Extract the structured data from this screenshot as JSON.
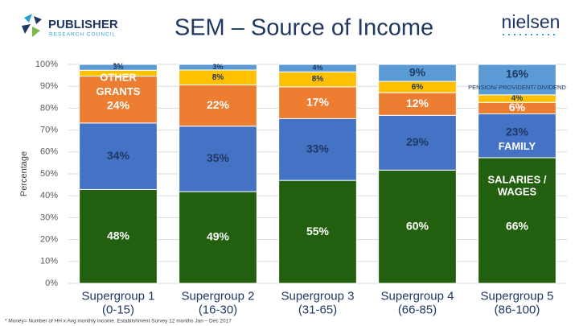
{
  "header": {
    "logo_left": "PUBLISHER",
    "logo_left_sub": "RESEARCH COUNCIL",
    "logo_right": "nielsen"
  },
  "chart_data": {
    "type": "bar",
    "stacked": "percent",
    "title": "SEM – Source of Income",
    "y_label": "Percentage",
    "footnote": "* Money= Number of HH x Avg monthly income. Establishment Survey 12 months Jan – Dec 2017",
    "categories": [
      "Supergroup 1\n(0-15)",
      "Supergroup 2\n(16-30)",
      "Supergroup 3\n(31-65)",
      "Supergroup 4\n(66-85)",
      "Supergroup 5\n(86-100)"
    ],
    "series": [
      {
        "name": "SALARIES /\nWAGES",
        "color": "#22600f",
        "values": [
          48,
          49,
          55,
          60,
          66
        ],
        "value_labels": [
          "48%",
          "49%",
          "55%",
          "60%",
          "66%"
        ]
      },
      {
        "name": "FAMILY",
        "color": "#4472c4",
        "values": [
          34,
          35,
          33,
          29,
          23
        ],
        "value_labels": [
          "34%",
          "35%",
          "33%",
          "29%",
          "23%"
        ]
      },
      {
        "name": "GRANTS",
        "color": "#ed7d31",
        "values": [
          24,
          22,
          17,
          12,
          6
        ],
        "value_labels": [
          "24%",
          "22%",
          "17%",
          "12%",
          "6%"
        ]
      },
      {
        "name": "OTHER",
        "color": "#ffc000",
        "values": [
          3,
          8,
          8,
          6,
          4
        ],
        "value_labels": [
          "3%",
          "8%",
          "8%",
          "6%",
          "4%"
        ]
      },
      {
        "name": "PENSION/ PROVIDENT/ DIVIDEND",
        "color": "#5b9bd5",
        "values": [
          3,
          3,
          4,
          9,
          16
        ],
        "value_labels": [
          "3%",
          "3%",
          "4%",
          "9%",
          "16%"
        ]
      }
    ],
    "ylim": [
      0,
      100
    ],
    "yticks": [
      {
        "value": 0,
        "label": "0%"
      },
      {
        "value": 10,
        "label": "10%"
      },
      {
        "value": 20,
        "label": "20%"
      },
      {
        "value": 30,
        "label": "30%"
      },
      {
        "value": 40,
        "label": "40%"
      },
      {
        "value": 50,
        "label": "50%"
      },
      {
        "value": 60,
        "label": "60%"
      },
      {
        "value": 70,
        "label": "70%"
      },
      {
        "value": 80,
        "label": "80%"
      },
      {
        "value": 90,
        "label": "90%"
      },
      {
        "value": 100,
        "label": "100%"
      }
    ],
    "grid": true
  }
}
